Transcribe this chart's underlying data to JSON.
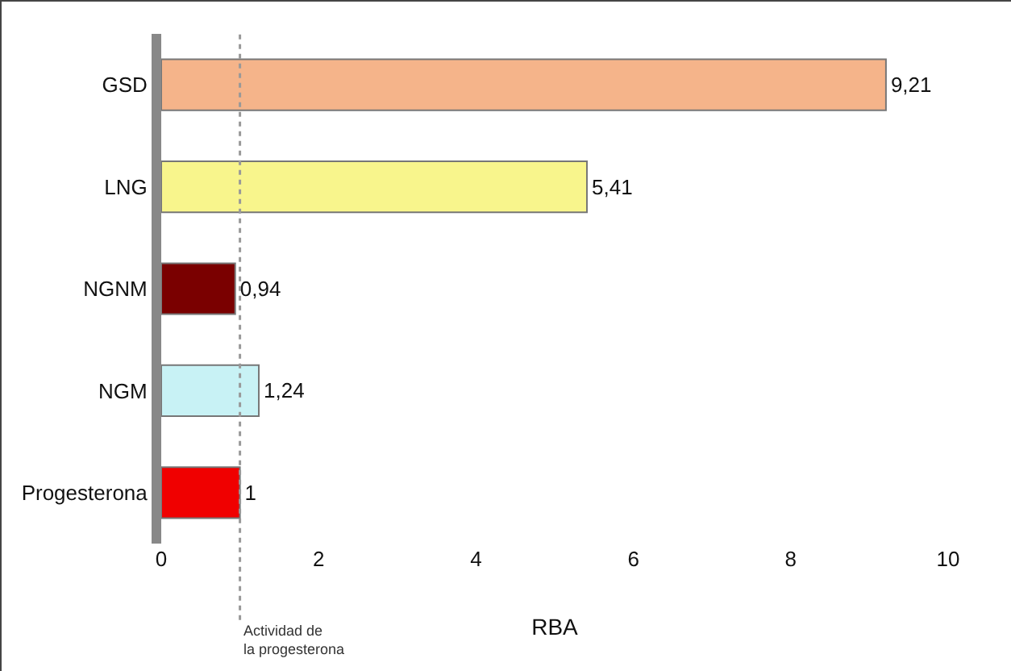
{
  "chart_data": {
    "type": "bar",
    "orientation": "horizontal",
    "xlabel": "RBA",
    "categories": [
      "GSD",
      "LNG",
      "NGNM",
      "NGM",
      "Progesterona"
    ],
    "values": [
      9.21,
      5.41,
      0.94,
      1.24,
      1
    ],
    "colors": [
      "#f5b48a",
      "#f8f58c",
      "#7a0000",
      "#c8f2f5",
      "#f00000"
    ],
    "value_labels": [
      "9,21",
      "5,41",
      "0,94",
      "1,24",
      "1"
    ],
    "xlim": [
      0,
      10
    ],
    "xticks": [
      0,
      2,
      4,
      6,
      8,
      10
    ],
    "ref_lines": [
      {
        "axis": "x",
        "value": 1,
        "label": "Actividad de\nla progesterona",
        "color": "#999999",
        "line_style": "dotted"
      }
    ]
  }
}
